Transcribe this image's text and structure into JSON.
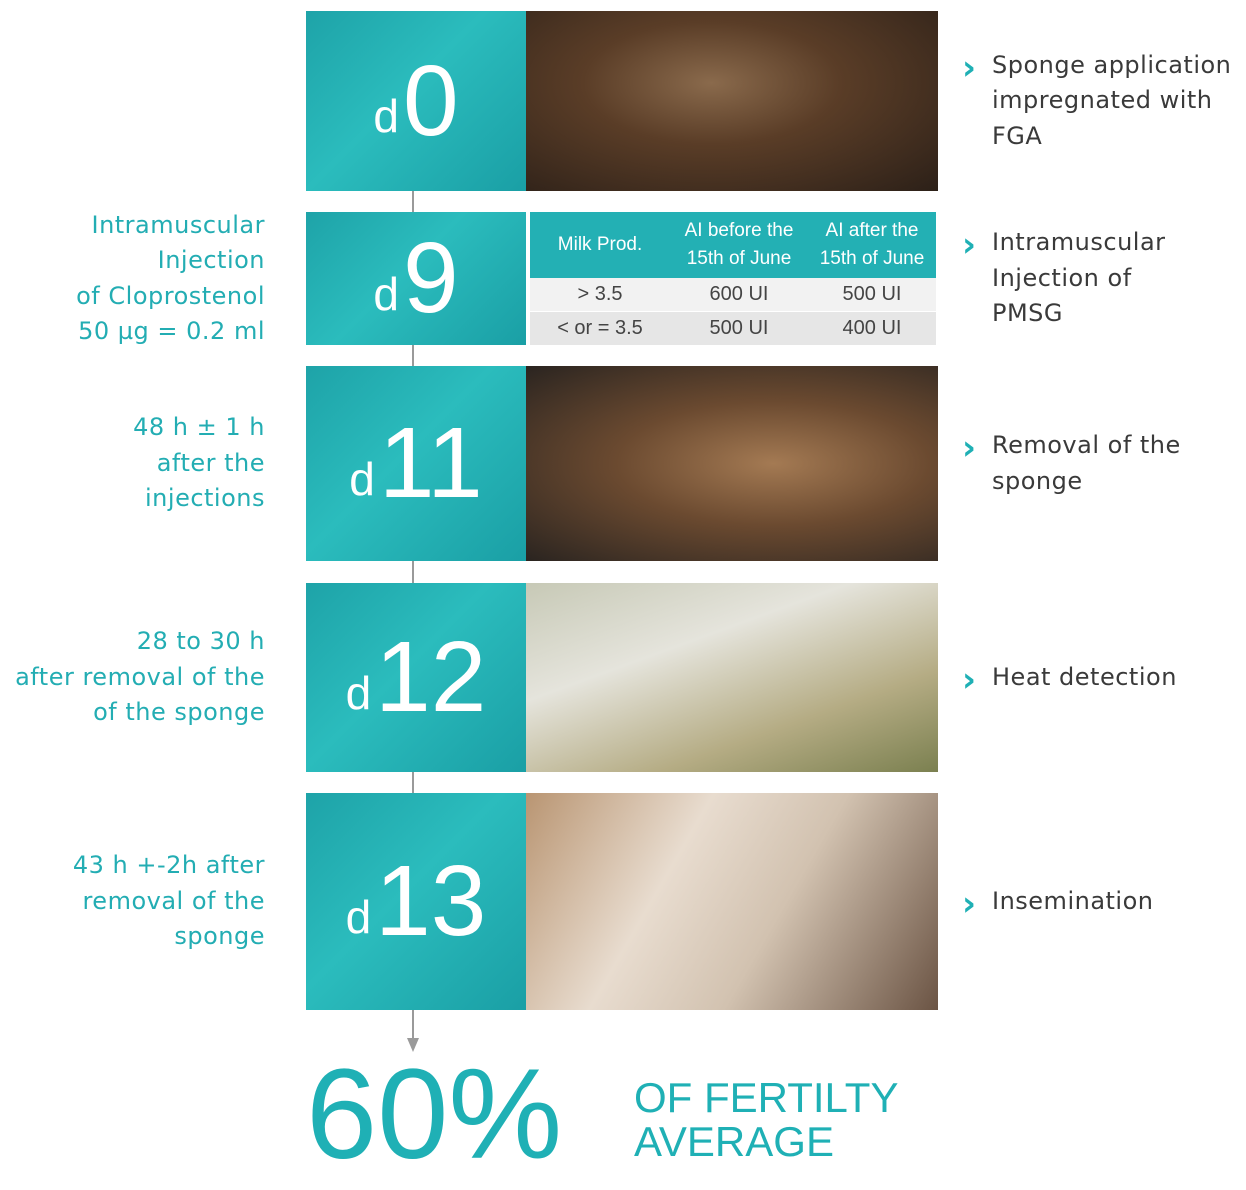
{
  "steps": [
    {
      "day_prefix": "d",
      "day_number": "0",
      "description": [
        "Sponge application",
        "impregnated with",
        "FGA"
      ]
    },
    {
      "day_prefix": "d",
      "day_number": "9",
      "note": [
        "Intramuscular",
        "Injection",
        "of Cloprostenol",
        "50 µg = 0.2 ml"
      ],
      "description": [
        "Intramuscular",
        "Injection of",
        "PMSG"
      ],
      "table": {
        "header": [
          [
            "Milk Prod."
          ],
          [
            "AI before the",
            "15th of June"
          ],
          [
            "AI after the",
            "15th of June"
          ]
        ],
        "rows": [
          [
            "> 3.5",
            "600 UI",
            "500 UI"
          ],
          [
            "< or = 3.5",
            "500 UI",
            "400 UI"
          ]
        ]
      }
    },
    {
      "day_prefix": "d",
      "day_number": "11",
      "note": [
        "48 h ± 1 h",
        "after the",
        "injections"
      ],
      "description": [
        "Removal of the",
        "sponge"
      ]
    },
    {
      "day_prefix": "d",
      "day_number": "12",
      "note": [
        "28 to 30 h",
        "after removal of the",
        "of the sponge"
      ],
      "description": [
        "Heat detection"
      ]
    },
    {
      "day_prefix": "d",
      "day_number": "13",
      "note": [
        "43 h +-2h after",
        "removal of the",
        "sponge"
      ],
      "description": [
        "Insemination"
      ]
    }
  ],
  "result": {
    "value": "60%",
    "label": [
      "OF FERTILTY",
      "AVERAGE"
    ]
  }
}
